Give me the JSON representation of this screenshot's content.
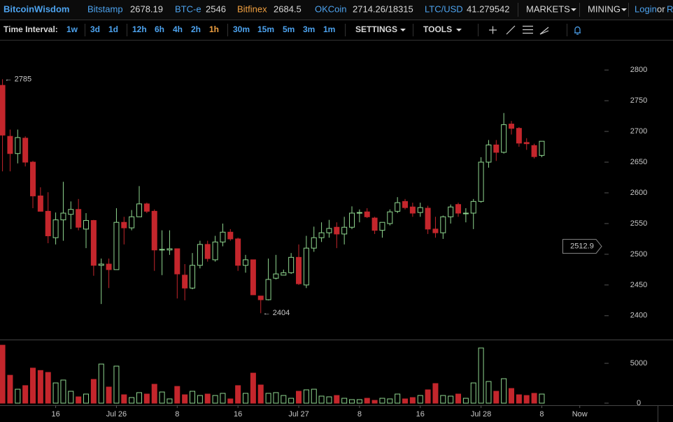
{
  "header": {
    "brand": "BitcoinWisdom",
    "tickers": [
      {
        "name": "Bitstamp",
        "price": 2678.19
      },
      {
        "name": "BTC-e",
        "price": 2546
      },
      {
        "name": "Bitfinex",
        "price": 2684.5
      },
      {
        "name": "OKCoin",
        "price": "2714.26/18315"
      },
      {
        "name": "LTC/USD",
        "price": 41.279542
      }
    ],
    "menus": [
      "MARKETS",
      "MINING"
    ],
    "login": "Login",
    "or": "or",
    "register": "R"
  },
  "toolbar": {
    "label": "Time Interval:",
    "intervals": [
      "1w",
      "3d",
      "1d",
      "12h",
      "6h",
      "4h",
      "2h",
      "1h",
      "30m",
      "15m",
      "5m",
      "3m",
      "1m"
    ],
    "active": "1h",
    "settings": "SETTINGS",
    "tools": "TOOLS"
  },
  "chart_data": {
    "type": "candlestick",
    "up_color": "#8fd68f",
    "down_color": "#c4262c",
    "open": [
      2775,
      2692,
      2664,
      2689,
      2650,
      2595,
      2570,
      2527,
      2556,
      2565,
      2573,
      2541,
      2555,
      2482,
      2484,
      2475,
      2552,
      2543,
      2561,
      2582,
      2570,
      2507,
      2507,
      2509,
      2466,
      2445,
      2482,
      2516,
      2491,
      2520,
      2536,
      2525,
      2482,
      2491,
      2432,
      2426,
      2461,
      2466,
      2470,
      2495,
      2450,
      2510,
      2527,
      2535,
      2544,
      2533,
      2544,
      2567,
      2569,
      2559,
      2539,
      2550,
      2570,
      2586,
      2577,
      2568,
      2575,
      2541,
      2535,
      2561,
      2581,
      2566,
      2567,
      2586,
      2650,
      2678,
      2666,
      2712,
      2705,
      2682,
      2677,
      2661
    ],
    "high": [
      2785,
      2703,
      2703,
      2692,
      2652,
      2609,
      2601,
      2568,
      2618,
      2586,
      2590,
      2567,
      2556,
      2493,
      2493,
      2575,
      2561,
      2572,
      2611,
      2584,
      2573,
      2539,
      2539,
      2509,
      2484,
      2502,
      2522,
      2522,
      2530,
      2550,
      2541,
      2527,
      2499,
      2491,
      2432,
      2493,
      2499,
      2475,
      2502,
      2516,
      2530,
      2545,
      2552,
      2556,
      2552,
      2561,
      2578,
      2573,
      2575,
      2561,
      2552,
      2573,
      2593,
      2590,
      2584,
      2584,
      2579,
      2561,
      2563,
      2581,
      2584,
      2575,
      2590,
      2658,
      2686,
      2686,
      2730,
      2717,
      2707,
      2689,
      2680,
      2684
    ],
    "low": [
      2635,
      2635,
      2648,
      2643,
      2575,
      2570,
      2518,
      2516,
      2522,
      2541,
      2539,
      2510,
      2465,
      2419,
      2445,
      2475,
      2516,
      2539,
      2561,
      2567,
      2473,
      2466,
      2499,
      2428,
      2425,
      2443,
      2477,
      2488,
      2488,
      2513,
      2522,
      2473,
      2470,
      2434,
      2404,
      2425,
      2459,
      2466,
      2468,
      2450,
      2445,
      2504,
      2520,
      2527,
      2510,
      2516,
      2541,
      2552,
      2559,
      2533,
      2527,
      2547,
      2567,
      2573,
      2561,
      2561,
      2533,
      2527,
      2525,
      2550,
      2561,
      2552,
      2541,
      2584,
      2641,
      2652,
      2664,
      2695,
      2675,
      2670,
      2656,
      2658
    ],
    "close": [
      2694,
      2664,
      2690,
      2650,
      2595,
      2570,
      2530,
      2556,
      2567,
      2573,
      2544,
      2555,
      2482,
      2484,
      2475,
      2552,
      2543,
      2561,
      2582,
      2570,
      2507,
      2508,
      2509,
      2468,
      2445,
      2482,
      2516,
      2493,
      2520,
      2536,
      2525,
      2482,
      2491,
      2434,
      2426,
      2459,
      2468,
      2470,
      2495,
      2452,
      2510,
      2527,
      2535,
      2542,
      2533,
      2544,
      2567,
      2568,
      2561,
      2539,
      2552,
      2569,
      2584,
      2576,
      2567,
      2576,
      2541,
      2535,
      2561,
      2577,
      2567,
      2567,
      2586,
      2650,
      2678,
      2666,
      2711,
      2705,
      2681,
      2680,
      2659,
      2684
    ],
    "volume": [
      7280,
      3500,
      1750,
      2200,
      4400,
      4100,
      3860,
      2540,
      2900,
      1490,
      790,
      1140,
      2980,
      4910,
      2020,
      4650,
      1050,
      700,
      1320,
      1140,
      2370,
      1400,
      530,
      2100,
      1050,
      1490,
      960,
      1140,
      960,
      1230,
      530,
      2200,
      1230,
      3770,
      2280,
      1230,
      1320,
      960,
      610,
      1490,
      1670,
      1750,
      880,
      790,
      960,
      610,
      440,
      440,
      610,
      350,
      610,
      530,
      1140,
      530,
      700,
      960,
      1670,
      2460,
      960,
      880,
      1140,
      610,
      2540,
      6930,
      2720,
      1490,
      3070,
      1840,
      1050,
      960,
      1230,
      1140
    ],
    "ylim": [
      2360,
      2848
    ],
    "yticks": [
      2400,
      2450,
      2500,
      2550,
      2600,
      2650,
      2700,
      2750,
      2800
    ],
    "volume_ylim": [
      0,
      7900
    ],
    "volume_yticks": [
      0,
      5000
    ],
    "xlim": [
      -0.33,
      79.8
    ],
    "xticks": [
      {
        "value": 7,
        "label": "16"
      },
      {
        "value": 15,
        "label": "Jul 26"
      },
      {
        "value": 23,
        "label": "8"
      },
      {
        "value": 31,
        "label": "16"
      },
      {
        "value": 39,
        "label": "Jul 27"
      },
      {
        "value": 47,
        "label": "8"
      },
      {
        "value": 55,
        "label": "16"
      },
      {
        "value": 63,
        "label": "Jul 28"
      },
      {
        "value": 71,
        "label": "8"
      },
      {
        "value": 76,
        "label": "Now"
      }
    ],
    "annotations": [
      {
        "value": 2785,
        "label": "← 2785"
      },
      {
        "value": 2404,
        "label": "← 2404"
      }
    ],
    "crosshair": 2512.9
  }
}
